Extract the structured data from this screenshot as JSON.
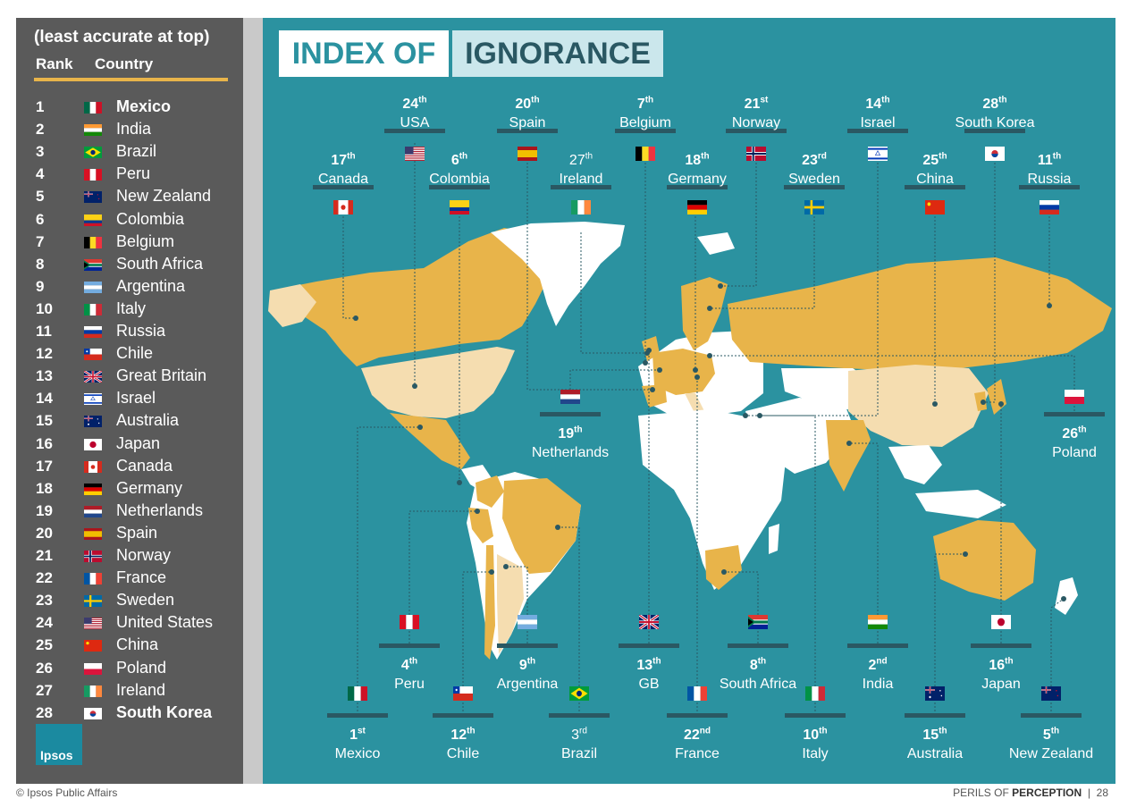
{
  "sidebar": {
    "header": "(least accurate at top)",
    "col_rank": "Rank",
    "col_country": "Country",
    "rows": [
      {
        "rank": "1",
        "country": "Mexico",
        "flag": "mx",
        "bold": true
      },
      {
        "rank": "2",
        "country": "India",
        "flag": "in"
      },
      {
        "rank": "3",
        "country": "Brazil",
        "flag": "br"
      },
      {
        "rank": "4",
        "country": "Peru",
        "flag": "pe"
      },
      {
        "rank": "5",
        "country": "New Zealand",
        "flag": "nz"
      },
      {
        "rank": "6",
        "country": "Colombia",
        "flag": "co"
      },
      {
        "rank": "7",
        "country": "Belgium",
        "flag": "be"
      },
      {
        "rank": "8",
        "country": "South Africa",
        "flag": "za"
      },
      {
        "rank": "9",
        "country": "Argentina",
        "flag": "ar"
      },
      {
        "rank": "10",
        "country": "Italy",
        "flag": "it"
      },
      {
        "rank": "11",
        "country": "Russia",
        "flag": "ru"
      },
      {
        "rank": "12",
        "country": "Chile",
        "flag": "cl"
      },
      {
        "rank": "13",
        "country": "Great Britain",
        "flag": "gb"
      },
      {
        "rank": "14",
        "country": "Israel",
        "flag": "il"
      },
      {
        "rank": "15",
        "country": "Australia",
        "flag": "au"
      },
      {
        "rank": "16",
        "country": "Japan",
        "flag": "jp"
      },
      {
        "rank": "17",
        "country": "Canada",
        "flag": "ca"
      },
      {
        "rank": "18",
        "country": "Germany",
        "flag": "de"
      },
      {
        "rank": "19",
        "country": "Netherlands",
        "flag": "nl"
      },
      {
        "rank": "20",
        "country": "Spain",
        "flag": "es"
      },
      {
        "rank": "21",
        "country": "Norway",
        "flag": "no"
      },
      {
        "rank": "22",
        "country": "France",
        "flag": "fr"
      },
      {
        "rank": "23",
        "country": "Sweden",
        "flag": "se"
      },
      {
        "rank": "24",
        "country": "United States",
        "flag": "us"
      },
      {
        "rank": "25",
        "country": "China",
        "flag": "cn"
      },
      {
        "rank": "26",
        "country": "Poland",
        "flag": "pl"
      },
      {
        "rank": "27",
        "country": "Ireland",
        "flag": "ie"
      },
      {
        "rank": "28",
        "country": "South Korea",
        "flag": "kr",
        "bold": true
      }
    ],
    "logo_text": "Ipsos"
  },
  "title": {
    "part1": "INDEX OF",
    "part2": "IGNORANCE"
  },
  "map_labels": [
    {
      "num": "24",
      "suf": "th",
      "name": "USA",
      "flag": "us"
    },
    {
      "num": "20",
      "suf": "th",
      "name": "Spain",
      "flag": "es"
    },
    {
      "num": "7",
      "suf": "th",
      "name": "Belgium",
      "flag": "be"
    },
    {
      "num": "21",
      "suf": "st",
      "name": "Norway",
      "flag": "no"
    },
    {
      "num": "14",
      "suf": "th",
      "name": "Israel",
      "flag": "il"
    },
    {
      "num": "28",
      "suf": "th",
      "name": "South Korea",
      "flag": "kr"
    },
    {
      "num": "17",
      "suf": "th",
      "name": "Canada",
      "flag": "ca"
    },
    {
      "num": "6",
      "suf": "th",
      "name": "Colombia",
      "flag": "co"
    },
    {
      "num": "27",
      "suf": "th",
      "name": "Ireland",
      "flag": "ie",
      "plain": true
    },
    {
      "num": "18",
      "suf": "th",
      "name": "Germany",
      "flag": "de"
    },
    {
      "num": "23",
      "suf": "rd",
      "name": "Sweden",
      "flag": "se"
    },
    {
      "num": "25",
      "suf": "th",
      "name": "China",
      "flag": "cn"
    },
    {
      "num": "11",
      "suf": "th",
      "name": "Russia",
      "flag": "ru"
    },
    {
      "num": "19",
      "suf": "th",
      "name": "Netherlands",
      "flag": "nl"
    },
    {
      "num": "26",
      "suf": "th",
      "name": "Poland",
      "flag": "pl"
    },
    {
      "num": "4",
      "suf": "th",
      "name": "Peru",
      "flag": "pe"
    },
    {
      "num": "9",
      "suf": "th",
      "name": "Argentina",
      "flag": "ar"
    },
    {
      "num": "13",
      "suf": "th",
      "name": "GB",
      "flag": "gb"
    },
    {
      "num": "8",
      "suf": "th",
      "name": "South Africa",
      "flag": "za"
    },
    {
      "num": "2",
      "suf": "nd",
      "name": "India",
      "flag": "in"
    },
    {
      "num": "16",
      "suf": "th",
      "name": "Japan",
      "flag": "jp"
    },
    {
      "num": "1",
      "suf": "st",
      "name": "Mexico",
      "flag": "mx"
    },
    {
      "num": "12",
      "suf": "th",
      "name": "Chile",
      "flag": "cl"
    },
    {
      "num": "3",
      "suf": "rd",
      "name": "Brazil",
      "flag": "br",
      "plain": true
    },
    {
      "num": "22",
      "suf": "nd",
      "name": "France",
      "flag": "fr"
    },
    {
      "num": "10",
      "suf": "th",
      "name": "Italy",
      "flag": "it"
    },
    {
      "num": "15",
      "suf": "th",
      "name": "Australia",
      "flag": "au"
    },
    {
      "num": "5",
      "suf": "th",
      "name": "New Zealand",
      "flag": "nz"
    }
  ],
  "footer": {
    "left": "© Ipsos Public Affairs",
    "right_a": "PERILS OF",
    "right_b": "PERCEPTION",
    "right_sep": "|",
    "page": "28"
  },
  "colors": {
    "panel": "#2b92a0",
    "land_highlight": "#e8b44a",
    "land_light": "#f5ddb0",
    "land_other": "#ffffff",
    "sidebar": "#5a5a5a",
    "accent_bar": "#2a5863"
  }
}
